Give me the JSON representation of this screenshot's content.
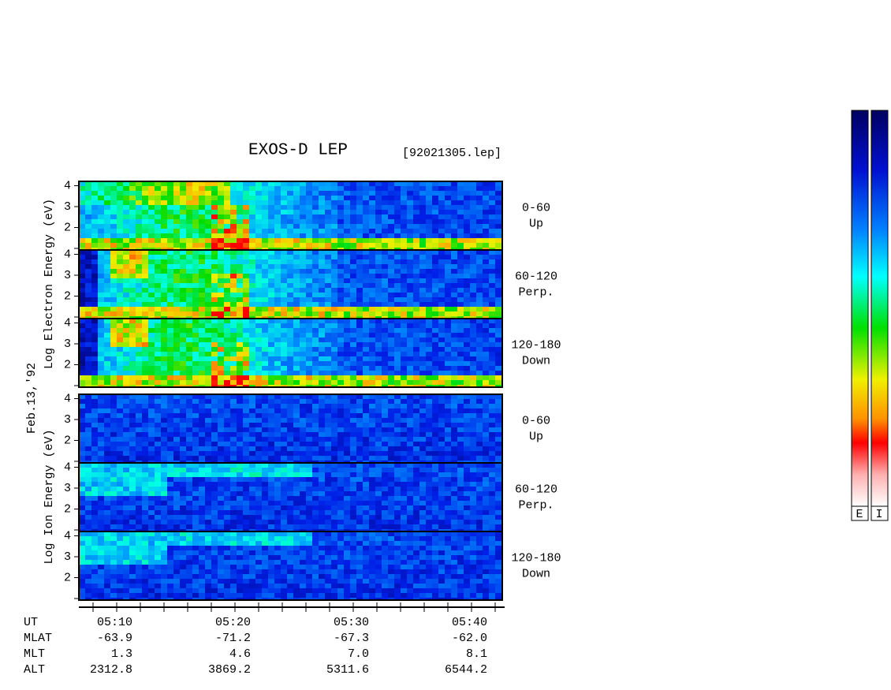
{
  "header": {
    "title": "EXOS-D LEP",
    "file": "[92021305.lep]",
    "date": "Feb.13,'92"
  },
  "electron": {
    "axis_label": "Log Electron Energy (eV)",
    "panels": [
      {
        "range": "0-60",
        "direction": "Up"
      },
      {
        "range": "60-120",
        "direction": "Perp."
      },
      {
        "range": "120-180",
        "direction": "Down"
      }
    ]
  },
  "ion": {
    "axis_label": "Log Ion Energy (eV)",
    "panels": [
      {
        "range": "0-60",
        "direction": "Up"
      },
      {
        "range": "60-120",
        "direction": "Perp."
      },
      {
        "range": "120-180",
        "direction": "Down"
      }
    ]
  },
  "energy_ticks": [
    "2",
    "3",
    "4"
  ],
  "table": {
    "rows": [
      [
        "UT",
        "05:10",
        "05:20",
        "05:30",
        "05:40"
      ],
      [
        "MLAT",
        "-63.9",
        "-71.2",
        "-67.3",
        "-62.0"
      ],
      [
        "MLT",
        "1.3",
        "4.6",
        "7.0",
        "8.1"
      ],
      [
        "ALT",
        "2312.8",
        "3869.2",
        "5311.6",
        "6544.2"
      ]
    ]
  },
  "colorbar": {
    "labels": [
      "E",
      "I"
    ]
  }
}
